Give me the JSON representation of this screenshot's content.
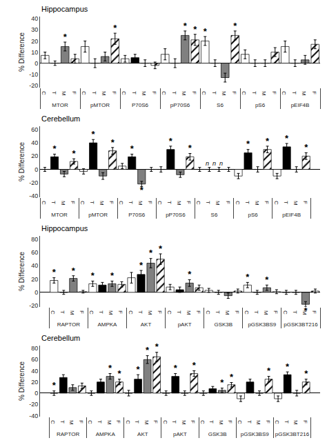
{
  "chart_data": [
    {
      "type": "bar",
      "title": "Hippocampus",
      "ylabel": "% Difference",
      "categories": [
        "MTOR",
        "pMTOR",
        "P70S6",
        "pP70S6",
        "S6",
        "pS6",
        "pEIF4B"
      ],
      "ylim": [
        -22,
        42
      ],
      "yticks": [
        -20,
        -10,
        0,
        10,
        20,
        30,
        40
      ],
      "grid": false,
      "star_label": "*",
      "series": [
        {
          "name": "C",
          "color": "white",
          "values": [
            7,
            15,
            4,
            8,
            20,
            8,
            15
          ],
          "errors": [
            3,
            5,
            3,
            5,
            4,
            4,
            5
          ],
          "stars": [
            false,
            false,
            false,
            false,
            true,
            false,
            false
          ]
        },
        {
          "name": "T",
          "color": "black",
          "values": [
            0,
            0,
            5,
            0,
            0,
            0,
            0
          ],
          "errors": [
            2,
            4,
            3,
            4,
            3,
            3,
            3
          ],
          "stars": [
            false,
            false,
            false,
            false,
            false,
            false,
            false
          ]
        },
        {
          "name": "M",
          "color": "#808080",
          "values": [
            15,
            6,
            0,
            25,
            -13,
            0,
            3
          ],
          "errors": [
            4,
            4,
            3,
            4,
            4,
            3,
            4
          ],
          "stars": [
            true,
            false,
            false,
            true,
            false,
            false,
            false
          ]
        },
        {
          "name": "F",
          "color": "white",
          "marker": "hatch",
          "values": [
            4,
            22,
            -2,
            21,
            25,
            10,
            17
          ],
          "errors": [
            4,
            5,
            3,
            5,
            4,
            4,
            4
          ],
          "stars": [
            false,
            true,
            false,
            true,
            true,
            false,
            false
          ]
        }
      ]
    },
    {
      "type": "bar",
      "title": "Cerebellum",
      "ylabel": "% Difference",
      "categories": [
        "MTOR",
        "pMTOR",
        "P70S6",
        "pP70S6",
        "S6",
        "pS6",
        "pEIF4B"
      ],
      "ylim": [
        -42,
        65
      ],
      "yticks": [
        -40,
        -20,
        0,
        20,
        40,
        60
      ],
      "grid": false,
      "star_label": "*",
      "annotations": [
        {
          "text": "n  n  n",
          "x": "S6",
          "y": 2
        }
      ],
      "series": [
        {
          "name": "C",
          "color": "white",
          "values": [
            0,
            -3,
            5,
            0,
            0,
            -10,
            -10
          ],
          "errors": [
            3,
            4,
            4,
            4,
            3,
            4,
            4
          ],
          "stars": [
            false,
            false,
            false,
            false,
            false,
            false,
            false
          ]
        },
        {
          "name": "T",
          "color": "black",
          "values": [
            19,
            40,
            19,
            30,
            0,
            25,
            34
          ],
          "errors": [
            4,
            5,
            4,
            5,
            3,
            5,
            5
          ],
          "stars": [
            true,
            true,
            true,
            true,
            false,
            true,
            true
          ]
        },
        {
          "name": "M",
          "color": "#808080",
          "values": [
            -7,
            -10,
            -22,
            -8,
            0,
            0,
            0
          ],
          "errors": [
            4,
            5,
            4,
            4,
            3,
            4,
            4
          ],
          "stars": [
            false,
            false,
            true,
            false,
            false,
            false,
            false
          ]
        },
        {
          "name": "F",
          "color": "white",
          "marker": "hatch",
          "values": [
            12,
            28,
            0,
            19,
            0,
            30,
            20
          ],
          "errors": [
            4,
            5,
            3,
            5,
            3,
            5,
            5
          ],
          "stars": [
            true,
            true,
            false,
            true,
            false,
            true,
            true
          ]
        }
      ]
    },
    {
      "type": "bar",
      "title": "Hippocampus",
      "ylabel": "% Difference",
      "categories": [
        "RAPTOR",
        "AMPKA",
        "AKT",
        "pAKT",
        "GSK3B",
        "pGSK3BS9",
        "pGSK3BT216"
      ],
      "ylim": [
        -22,
        85
      ],
      "yticks": [
        -20,
        0,
        20,
        40,
        60,
        80
      ],
      "grid": false,
      "star_label": "*",
      "series": [
        {
          "name": "C",
          "color": "white",
          "values": [
            18,
            13,
            22,
            8,
            3,
            11,
            0
          ],
          "errors": [
            4,
            4,
            8,
            4,
            3,
            4,
            3
          ],
          "stars": [
            true,
            true,
            false,
            false,
            false,
            true,
            false
          ]
        },
        {
          "name": "T",
          "color": "black",
          "values": [
            0,
            11,
            27,
            4,
            0,
            0,
            0
          ],
          "errors": [
            3,
            4,
            6,
            4,
            3,
            3,
            3
          ],
          "stars": [
            false,
            false,
            true,
            false,
            false,
            false,
            false
          ]
        },
        {
          "name": "M",
          "color": "#808080",
          "values": [
            21,
            13,
            44,
            14,
            -5,
            7,
            -18
          ],
          "errors": [
            4,
            4,
            7,
            5,
            4,
            4,
            4
          ],
          "stars": [
            true,
            true,
            true,
            true,
            false,
            true,
            true
          ]
        },
        {
          "name": "F",
          "color": "white",
          "marker": "hatch",
          "values": [
            1,
            12,
            50,
            7,
            2,
            1,
            2
          ],
          "errors": [
            2,
            4,
            8,
            4,
            3,
            3,
            3
          ],
          "stars": [
            false,
            false,
            true,
            false,
            false,
            false,
            false
          ]
        }
      ]
    },
    {
      "type": "bar",
      "title": "Cerebellum",
      "ylabel": "% Difference",
      "categories": [
        "RAPTOR",
        "AMPKA",
        "AKT",
        "pAKT",
        "GSK3B",
        "pGSK3BS9",
        "pGSK3BT216"
      ],
      "ylim": [
        -42,
        85
      ],
      "yticks": [
        -40,
        -20,
        0,
        20,
        40,
        60,
        80
      ],
      "grid": false,
      "star_label": "*",
      "series": [
        {
          "name": "C",
          "color": "white",
          "values": [
            0,
            0,
            0,
            0,
            0,
            -10,
            -10
          ],
          "errors": [
            4,
            4,
            5,
            4,
            4,
            5,
            5
          ],
          "stars": [
            true,
            false,
            false,
            false,
            false,
            false,
            false
          ]
        },
        {
          "name": "T",
          "color": "black",
          "values": [
            28,
            20,
            25,
            30,
            8,
            20,
            33
          ],
          "errors": [
            5,
            5,
            8,
            5,
            4,
            5,
            5
          ],
          "stars": [
            false,
            false,
            true,
            true,
            false,
            false,
            true
          ]
        },
        {
          "name": "M",
          "color": "#808080",
          "values": [
            10,
            30,
            60,
            0,
            5,
            0,
            0
          ],
          "errors": [
            5,
            5,
            7,
            4,
            4,
            4,
            5
          ],
          "stars": [
            false,
            true,
            true,
            false,
            true,
            false,
            false
          ]
        },
        {
          "name": "F",
          "color": "white",
          "marker": "hatch",
          "values": [
            13,
            20,
            65,
            35,
            15,
            25,
            20
          ],
          "errors": [
            5,
            5,
            8,
            5,
            4,
            5,
            5
          ],
          "stars": [
            false,
            true,
            true,
            true,
            true,
            true,
            true
          ]
        }
      ]
    }
  ]
}
